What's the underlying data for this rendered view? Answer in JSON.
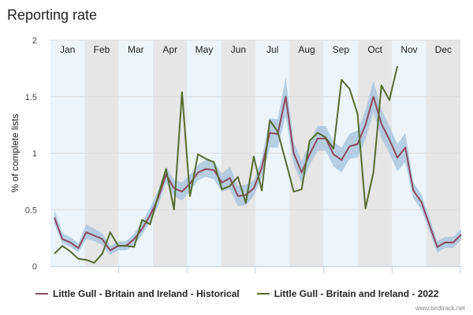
{
  "title": "Reporting rate",
  "credit": "www.birdtrack.net",
  "colors": {
    "historical": "#8c4a5c",
    "year2022": "#556b2f",
    "band": "#a9c3dc",
    "month_light": "#ebf5fb",
    "month_dark": "#e6e6e6"
  },
  "chart_data": {
    "type": "line",
    "title": "Reporting rate",
    "ylabel": "% of complete lists",
    "xlabel": "",
    "ylim": [
      0,
      2
    ],
    "yticks": [
      "0",
      "0.5",
      "1",
      "1.5",
      "2"
    ],
    "months": [
      "Jan",
      "Feb",
      "Mar",
      "Apr",
      "May",
      "Jun",
      "Jul",
      "Aug",
      "Sep",
      "Oct",
      "Nov",
      "Dec"
    ],
    "x_unit": "week of year (1-52)",
    "grid": true,
    "legend_position": "bottom",
    "series": [
      {
        "name": "Little Gull - Britain and Ireland - Historical",
        "values": [
          0.43,
          0.24,
          0.21,
          0.16,
          0.3,
          0.27,
          0.24,
          0.14,
          0.18,
          0.18,
          0.24,
          0.33,
          0.45,
          0.6,
          0.81,
          0.69,
          0.66,
          0.73,
          0.83,
          0.86,
          0.85,
          0.74,
          0.78,
          0.62,
          0.63,
          0.69,
          0.87,
          1.18,
          1.17,
          1.5,
          1.0,
          0.83,
          0.99,
          1.13,
          1.13,
          0.99,
          0.94,
          1.06,
          1.08,
          1.25,
          1.5,
          1.26,
          1.12,
          0.96,
          1.05,
          0.67,
          0.57,
          0.37,
          0.17,
          0.21,
          0.21,
          0.28
        ],
        "lower": [
          0.37,
          0.2,
          0.17,
          0.12,
          0.24,
          0.22,
          0.19,
          0.1,
          0.14,
          0.14,
          0.19,
          0.28,
          0.39,
          0.53,
          0.74,
          0.62,
          0.58,
          0.66,
          0.76,
          0.79,
          0.77,
          0.66,
          0.68,
          0.53,
          0.54,
          0.62,
          0.79,
          1.05,
          1.05,
          1.33,
          0.9,
          0.73,
          0.89,
          1.02,
          1.02,
          0.88,
          0.83,
          0.95,
          0.96,
          1.12,
          1.36,
          1.13,
          1.0,
          0.84,
          0.92,
          0.6,
          0.5,
          0.31,
          0.12,
          0.16,
          0.16,
          0.23
        ],
        "upper": [
          0.5,
          0.29,
          0.26,
          0.2,
          0.37,
          0.33,
          0.29,
          0.18,
          0.22,
          0.22,
          0.29,
          0.39,
          0.52,
          0.67,
          0.88,
          0.76,
          0.74,
          0.81,
          0.9,
          0.94,
          0.93,
          0.82,
          0.88,
          0.71,
          0.72,
          0.76,
          0.95,
          1.31,
          1.3,
          1.67,
          1.1,
          0.93,
          1.09,
          1.24,
          1.24,
          1.1,
          1.05,
          1.17,
          1.2,
          1.38,
          1.64,
          1.39,
          1.24,
          1.08,
          1.18,
          0.74,
          0.64,
          0.43,
          0.22,
          0.26,
          0.26,
          0.33
        ]
      },
      {
        "name": "Little Gull - Britain and Ireland - 2022",
        "values": [
          0.11,
          0.18,
          0.13,
          0.065,
          0.056,
          0.03,
          0.11,
          0.3,
          0.18,
          0.18,
          0.17,
          0.41,
          0.37,
          0.62,
          0.86,
          0.5,
          1.54,
          0.62,
          0.99,
          0.95,
          0.92,
          0.68,
          0.71,
          0.79,
          0.56,
          0.97,
          0.67,
          1.29,
          1.19,
          0.93,
          0.66,
          0.68,
          1.11,
          1.18,
          1.14,
          1.04,
          1.65,
          1.57,
          1.35,
          0.51,
          0.83,
          1.6,
          1.47,
          1.77
        ]
      }
    ]
  }
}
